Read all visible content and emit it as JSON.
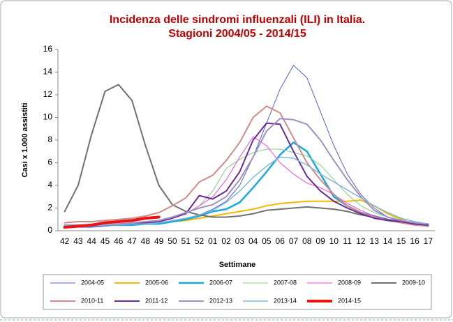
{
  "chart_data": {
    "type": "line",
    "title": [
      "Incidenza delle sindromi influenzali (ILI) in Italia.",
      "Stagioni 2004/05 - 2014/15"
    ],
    "xlabel": "Settimane",
    "ylabel": "Casi x 1.000 assistiti",
    "categories": [
      "42",
      "43",
      "44",
      "45",
      "46",
      "47",
      "48",
      "49",
      "50",
      "51",
      "52",
      "01",
      "02",
      "03",
      "04",
      "05",
      "06",
      "07",
      "08",
      "09",
      "10",
      "11",
      "12",
      "13",
      "14",
      "15",
      "16",
      "17"
    ],
    "ylim": [
      0,
      16
    ],
    "yticks": [
      0,
      2,
      4,
      6,
      8,
      10,
      12,
      14,
      16
    ],
    "grid": false,
    "legend": "bottom",
    "series": [
      {
        "name": "2004-05",
        "color": "#5060e0",
        "width": 1,
        "values": [
          0.3,
          0.3,
          0.3,
          0.4,
          0.5,
          0.5,
          0.6,
          0.7,
          0.9,
          1.1,
          1.4,
          1.9,
          2.6,
          4.0,
          6.5,
          9.5,
          12.5,
          14.6,
          13.5,
          10.5,
          7.5,
          5.0,
          3.2,
          2.0,
          1.2,
          0.8,
          0.6,
          0.4
        ]
      },
      {
        "name": "2005-06",
        "color": "#f5b800",
        "width": 2,
        "values": [
          0.4,
          0.4,
          0.4,
          0.5,
          0.5,
          0.6,
          0.6,
          0.7,
          0.8,
          0.9,
          1.1,
          1.3,
          1.5,
          1.7,
          1.9,
          2.2,
          2.4,
          2.5,
          2.6,
          2.6,
          2.6,
          2.6,
          2.7,
          2.2,
          1.5,
          1.0,
          0.6,
          0.4
        ]
      },
      {
        "name": "2006-07",
        "color": "#1aa8e0",
        "width": 2.5,
        "values": [
          0.4,
          0.4,
          0.4,
          0.5,
          0.5,
          0.5,
          0.6,
          0.6,
          0.8,
          1.0,
          1.3,
          1.7,
          1.9,
          2.5,
          3.8,
          5.2,
          6.7,
          7.8,
          7.0,
          5.0,
          3.0,
          2.2,
          1.6,
          1.3,
          1.0,
          0.8,
          0.6,
          0.4
        ]
      },
      {
        "name": "2007-08",
        "color": "#80d080",
        "width": 1,
        "values": [
          0.5,
          0.5,
          0.5,
          0.5,
          0.6,
          0.7,
          0.8,
          0.9,
          1.1,
          1.5,
          2.2,
          3.5,
          5.5,
          6.3,
          6.9,
          7.2,
          7.2,
          6.9,
          6.6,
          5.8,
          4.5,
          3.2,
          2.2,
          1.6,
          1.2,
          0.9,
          0.7,
          0.5
        ]
      },
      {
        "name": "2008-09",
        "color": "#ff44dd",
        "width": 1,
        "values": [
          0.4,
          0.4,
          0.5,
          0.5,
          0.6,
          0.6,
          0.7,
          0.9,
          1.1,
          1.5,
          2.2,
          3.0,
          4.5,
          6.5,
          8.3,
          7.5,
          6.0,
          5.0,
          4.2,
          3.8,
          3.2,
          2.4,
          1.8,
          1.3,
          1.0,
          0.8,
          0.6,
          0.4
        ]
      },
      {
        "name": "2009-10",
        "color": "#707070",
        "width": 2,
        "values": [
          1.7,
          4.0,
          8.5,
          12.3,
          12.9,
          11.5,
          7.5,
          4.0,
          2.3,
          1.7,
          1.4,
          1.2,
          1.2,
          1.3,
          1.5,
          1.8,
          1.9,
          2.0,
          2.1,
          2.0,
          1.9,
          1.7,
          1.4,
          1.2,
          1.0,
          0.8,
          0.7,
          0.6
        ]
      },
      {
        "name": "2010-11",
        "color": "#d08a8a",
        "width": 2,
        "values": [
          0.7,
          0.8,
          0.8,
          0.9,
          1.0,
          1.1,
          1.3,
          1.6,
          2.2,
          2.9,
          4.3,
          4.9,
          6.2,
          7.8,
          10.0,
          11.0,
          10.4,
          8.2,
          6.0,
          4.5,
          3.2,
          2.2,
          1.6,
          1.2,
          0.9,
          0.7,
          0.5,
          0.4
        ]
      },
      {
        "name": "2011-12",
        "color": "#6a2a9a",
        "width": 2,
        "values": [
          0.4,
          0.4,
          0.4,
          0.5,
          0.5,
          0.6,
          0.7,
          0.8,
          1.1,
          1.5,
          3.1,
          2.8,
          3.5,
          5.2,
          8.0,
          9.5,
          9.4,
          7.0,
          4.8,
          3.5,
          2.6,
          2.0,
          1.5,
          1.1,
          0.9,
          0.8,
          0.6,
          0.5
        ]
      },
      {
        "name": "2012-13",
        "color": "#a090c0",
        "width": 2,
        "values": [
          0.5,
          0.5,
          0.5,
          0.5,
          0.6,
          0.7,
          0.8,
          0.9,
          1.2,
          1.6,
          2.0,
          2.3,
          3.0,
          4.5,
          6.5,
          8.8,
          9.9,
          9.8,
          9.4,
          8.0,
          6.2,
          4.5,
          3.0,
          1.8,
          1.2,
          0.9,
          0.7,
          0.6
        ]
      },
      {
        "name": "2013-14",
        "color": "#80b8d8",
        "width": 1.5,
        "values": [
          0.4,
          0.4,
          0.4,
          0.5,
          0.5,
          0.6,
          0.6,
          0.7,
          0.9,
          1.1,
          1.4,
          1.8,
          2.5,
          3.5,
          4.7,
          5.7,
          6.5,
          6.4,
          5.8,
          5.0,
          4.3,
          3.6,
          2.9,
          2.2,
          1.6,
          1.1,
          0.8,
          0.6
        ]
      },
      {
        "name": "2014-15",
        "color": "#ee1111",
        "width": 4,
        "values": [
          0.3,
          0.4,
          0.5,
          0.7,
          0.8,
          0.9,
          1.1,
          1.2,
          null,
          null,
          null,
          null,
          null,
          null,
          null,
          null,
          null,
          null,
          null,
          null,
          null,
          null,
          null,
          null,
          null,
          null,
          null,
          null
        ]
      }
    ]
  }
}
